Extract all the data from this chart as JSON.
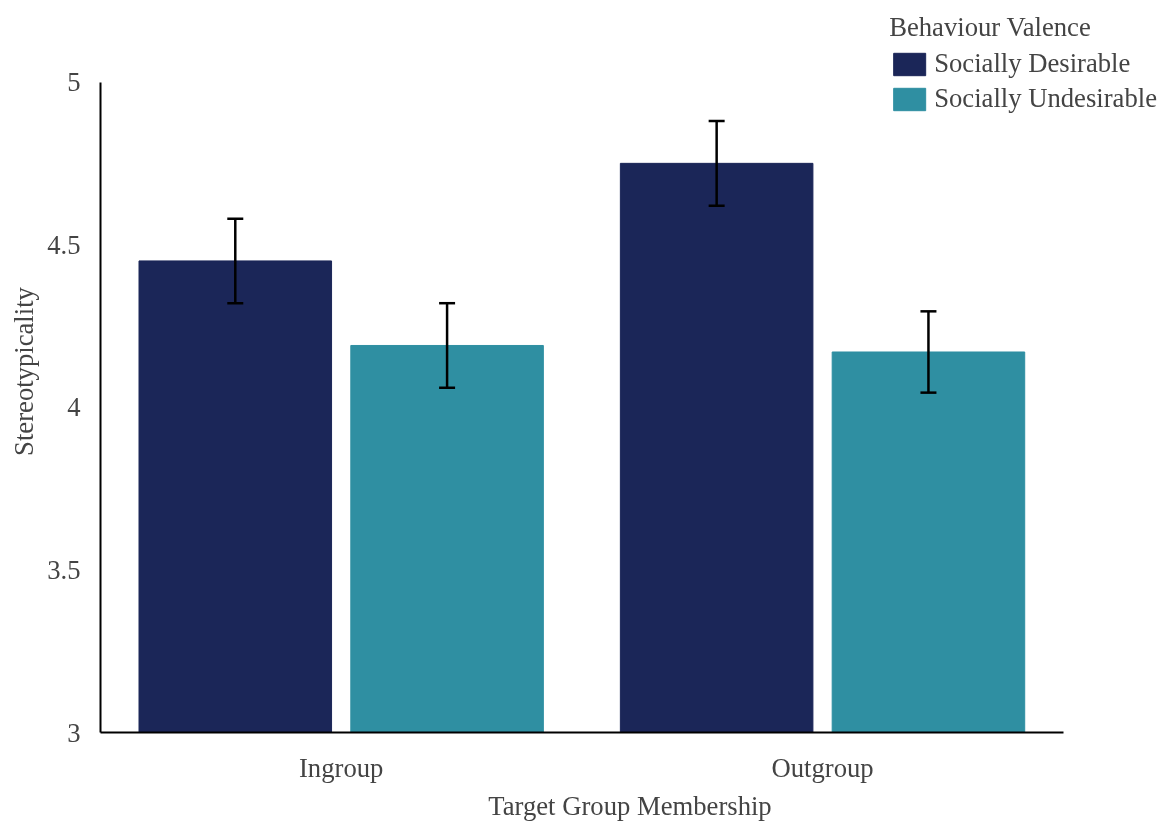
{
  "chart_data": {
    "type": "bar",
    "xlabel": "Target Group Membership",
    "ylabel": "Stereotypicality",
    "legend_title": "Behaviour Valence",
    "categories": [
      "Ingroup",
      "Outgroup"
    ],
    "series": [
      {
        "name": "Socially Desirable",
        "color": "#1b2658",
        "values": [
          4.45,
          4.75
        ],
        "errors": [
          0.13,
          0.13
        ]
      },
      {
        "name": "Socially Undesirable",
        "color": "#2f8fa2",
        "values": [
          4.19,
          4.17
        ],
        "errors": [
          0.13,
          0.125
        ]
      }
    ],
    "ylim": [
      3,
      5
    ],
    "yticks": [
      3,
      3.5,
      4,
      4.5,
      5
    ],
    "grid": false,
    "legend": "top right"
  }
}
